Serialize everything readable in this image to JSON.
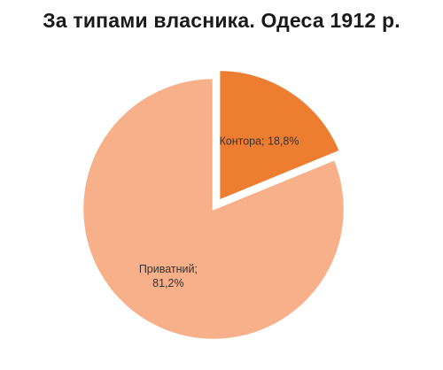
{
  "chart_data": {
    "type": "pie",
    "title": "За типами власника. Одеса 1912 р.",
    "slices": [
      {
        "label_lines": [
          "Контора; 18,8%"
        ],
        "value": 18.8,
        "color": "#ed7d31",
        "exploded": true
      },
      {
        "label_lines": [
          "Приватний;",
          "81,2%"
        ],
        "value": 81.2,
        "color": "#f8b08a",
        "exploded": false
      }
    ],
    "legend": "none"
  }
}
